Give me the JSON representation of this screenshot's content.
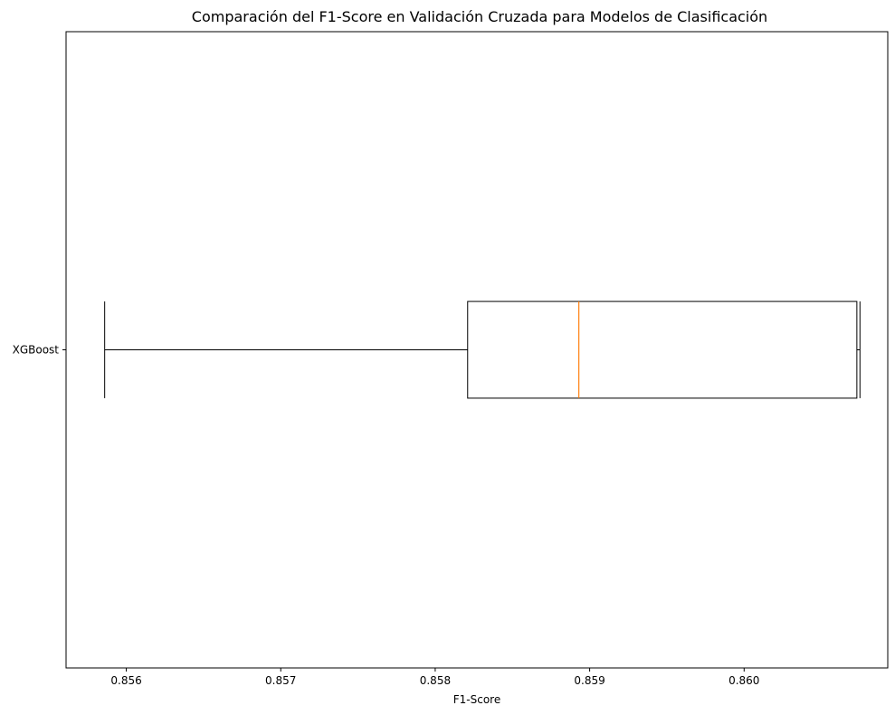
{
  "chart_data": {
    "type": "boxplot",
    "orientation": "horizontal",
    "title": "Comparación del F1-Score en Validación Cruzada para Modelos de Clasificación",
    "xlabel": "F1-Score",
    "ylabel": "",
    "xlim": [
      0.85561,
      0.86093
    ],
    "x_ticks": [
      0.856,
      0.857,
      0.858,
      0.859,
      0.86
    ],
    "x_tick_labels": [
      "0.856",
      "0.857",
      "0.858",
      "0.859",
      "0.860"
    ],
    "grid": false,
    "categories": [
      "XGBoost"
    ],
    "boxes": [
      {
        "category": "XGBoost",
        "whisker_low": 0.85586,
        "q1": 0.85821,
        "median": 0.85893,
        "q3": 0.86073,
        "whisker_high": 0.86075
      }
    ],
    "colors": {
      "box_edge": "#000000",
      "median": "#ff7f0e",
      "axes": "#000000"
    }
  }
}
